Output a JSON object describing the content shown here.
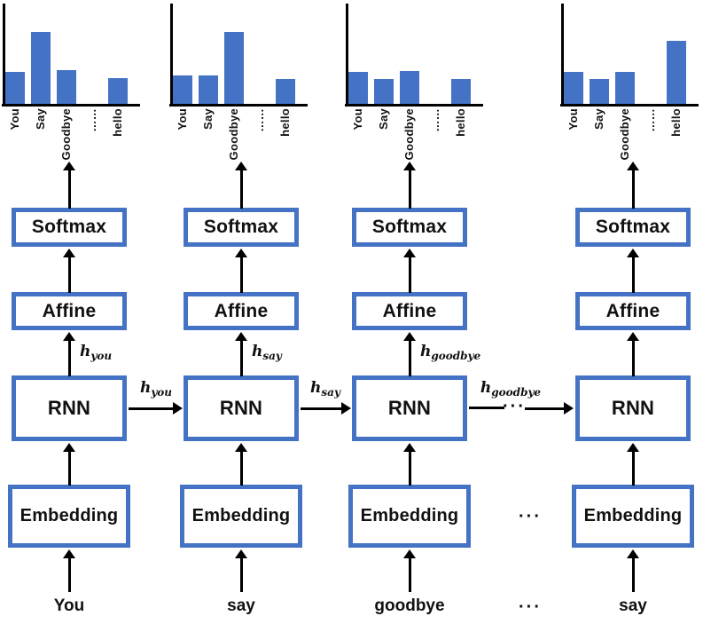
{
  "chart_data": [
    {
      "type": "bar",
      "categories": [
        "You",
        "Say",
        "Goodbye",
        "……",
        "hello"
      ],
      "values": [
        0.32,
        0.73,
        0.34,
        null,
        0.26
      ],
      "title": "",
      "xlabel": "",
      "ylabel": "",
      "ylim": [
        0,
        1
      ]
    },
    {
      "type": "bar",
      "categories": [
        "You",
        "Say",
        "Goodbye",
        "……",
        "hello"
      ],
      "values": [
        0.29,
        0.29,
        0.73,
        null,
        0.25
      ],
      "title": "",
      "xlabel": "",
      "ylabel": "",
      "ylim": [
        0,
        1
      ]
    },
    {
      "type": "bar",
      "categories": [
        "You",
        "Say",
        "Goodbye",
        "……",
        "hello"
      ],
      "values": [
        0.32,
        0.25,
        0.33,
        null,
        0.25
      ],
      "title": "",
      "xlabel": "",
      "ylabel": "",
      "ylim": [
        0,
        1
      ]
    },
    {
      "type": "bar",
      "categories": [
        "You",
        "Say",
        "Goodbye",
        "……",
        "hello"
      ],
      "values": [
        0.32,
        0.25,
        0.32,
        null,
        0.64
      ],
      "title": "",
      "xlabel": "",
      "ylabel": "",
      "ylim": [
        0,
        1
      ]
    }
  ],
  "diagram": {
    "colors": {
      "accent": "#4472C4",
      "line": "#000000",
      "text": "#111111",
      "background": "#ffffff"
    },
    "box_labels": {
      "embedding": "Embedding",
      "rnn": "RNN",
      "affine": "Affine",
      "softmax": "Softmax"
    },
    "ellipsis": "···",
    "columns": [
      {
        "input_word": "You",
        "hidden_label": {
          "base": "h",
          "sub": "you"
        },
        "recurrent_label": {
          "base": "h",
          "sub": "you"
        }
      },
      {
        "input_word": "say",
        "hidden_label": {
          "base": "h",
          "sub": "say"
        },
        "recurrent_label": {
          "base": "h",
          "sub": "say"
        }
      },
      {
        "input_word": "goodbye",
        "hidden_label": {
          "base": "h",
          "sub": "goodbye"
        },
        "recurrent_label": {
          "base": "h",
          "sub": "goodbye"
        },
        "recurrent_broken": true
      },
      {
        "input_word": "say"
      }
    ]
  }
}
